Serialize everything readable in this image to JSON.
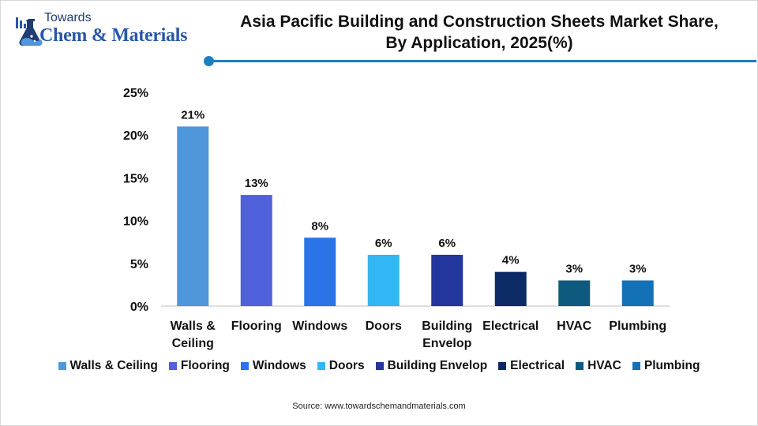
{
  "logo": {
    "top_text": "Towards",
    "main_text": "Chem & Materials"
  },
  "header": {
    "title_line1": "Asia Pacific Building and Construction Sheets Market Share,",
    "title_line2": "By Application, 2025(%)"
  },
  "chart_data": {
    "type": "bar",
    "categories": [
      [
        "Walls &",
        "Ceiling"
      ],
      [
        "Flooring"
      ],
      [
        "Windows"
      ],
      [
        "Doors"
      ],
      [
        "Building",
        "Envelop"
      ],
      [
        "Electrical"
      ],
      [
        "HVAC"
      ],
      [
        "Plumbing"
      ]
    ],
    "values": [
      21,
      13,
      8,
      6,
      6,
      4,
      3,
      3
    ],
    "data_labels": [
      "21%",
      "13%",
      "8%",
      "6%",
      "6%",
      "4%",
      "3%",
      "3%"
    ],
    "colors": [
      "#4f96db",
      "#4f62db",
      "#2a74e8",
      "#33b6f4",
      "#22369d",
      "#0c2a66",
      "#0e5a7f",
      "#1371b6"
    ],
    "yticks": [
      0,
      5,
      10,
      15,
      20,
      25
    ],
    "ytick_labels": [
      "0%",
      "5%",
      "10%",
      "15%",
      "20%",
      "25%"
    ],
    "ylim": [
      0,
      25
    ],
    "grid": false,
    "legend_position": "bottom",
    "legend": [
      "Walls & Ceiling",
      "Flooring",
      "Windows",
      "Doors",
      "Building Envelop",
      "Electrical",
      "HVAC",
      "Plumbing"
    ]
  },
  "footer": {
    "source": "Source:  www.towardschemandmaterials.com"
  }
}
